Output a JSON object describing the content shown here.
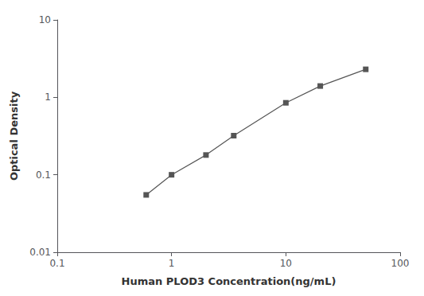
{
  "chart_data": {
    "type": "line",
    "xlabel": "Human PLOD3 Concentration(ng/mL)",
    "ylabel": "Optical Density",
    "x": [
      0.6,
      1.0,
      2.0,
      3.5,
      10.0,
      20.0,
      50.0
    ],
    "values": [
      0.055,
      0.1,
      0.18,
      0.32,
      0.85,
      1.4,
      2.3
    ],
    "color": "#555555",
    "marker": "square",
    "line_style": "solid",
    "log": true,
    "xlim": [
      0.1,
      100
    ],
    "ylim": [
      0.01,
      10
    ],
    "xticks": [
      0.1,
      1,
      10,
      100
    ],
    "yticks": [
      0.01,
      0.1,
      1,
      10
    ],
    "grid": false
  }
}
